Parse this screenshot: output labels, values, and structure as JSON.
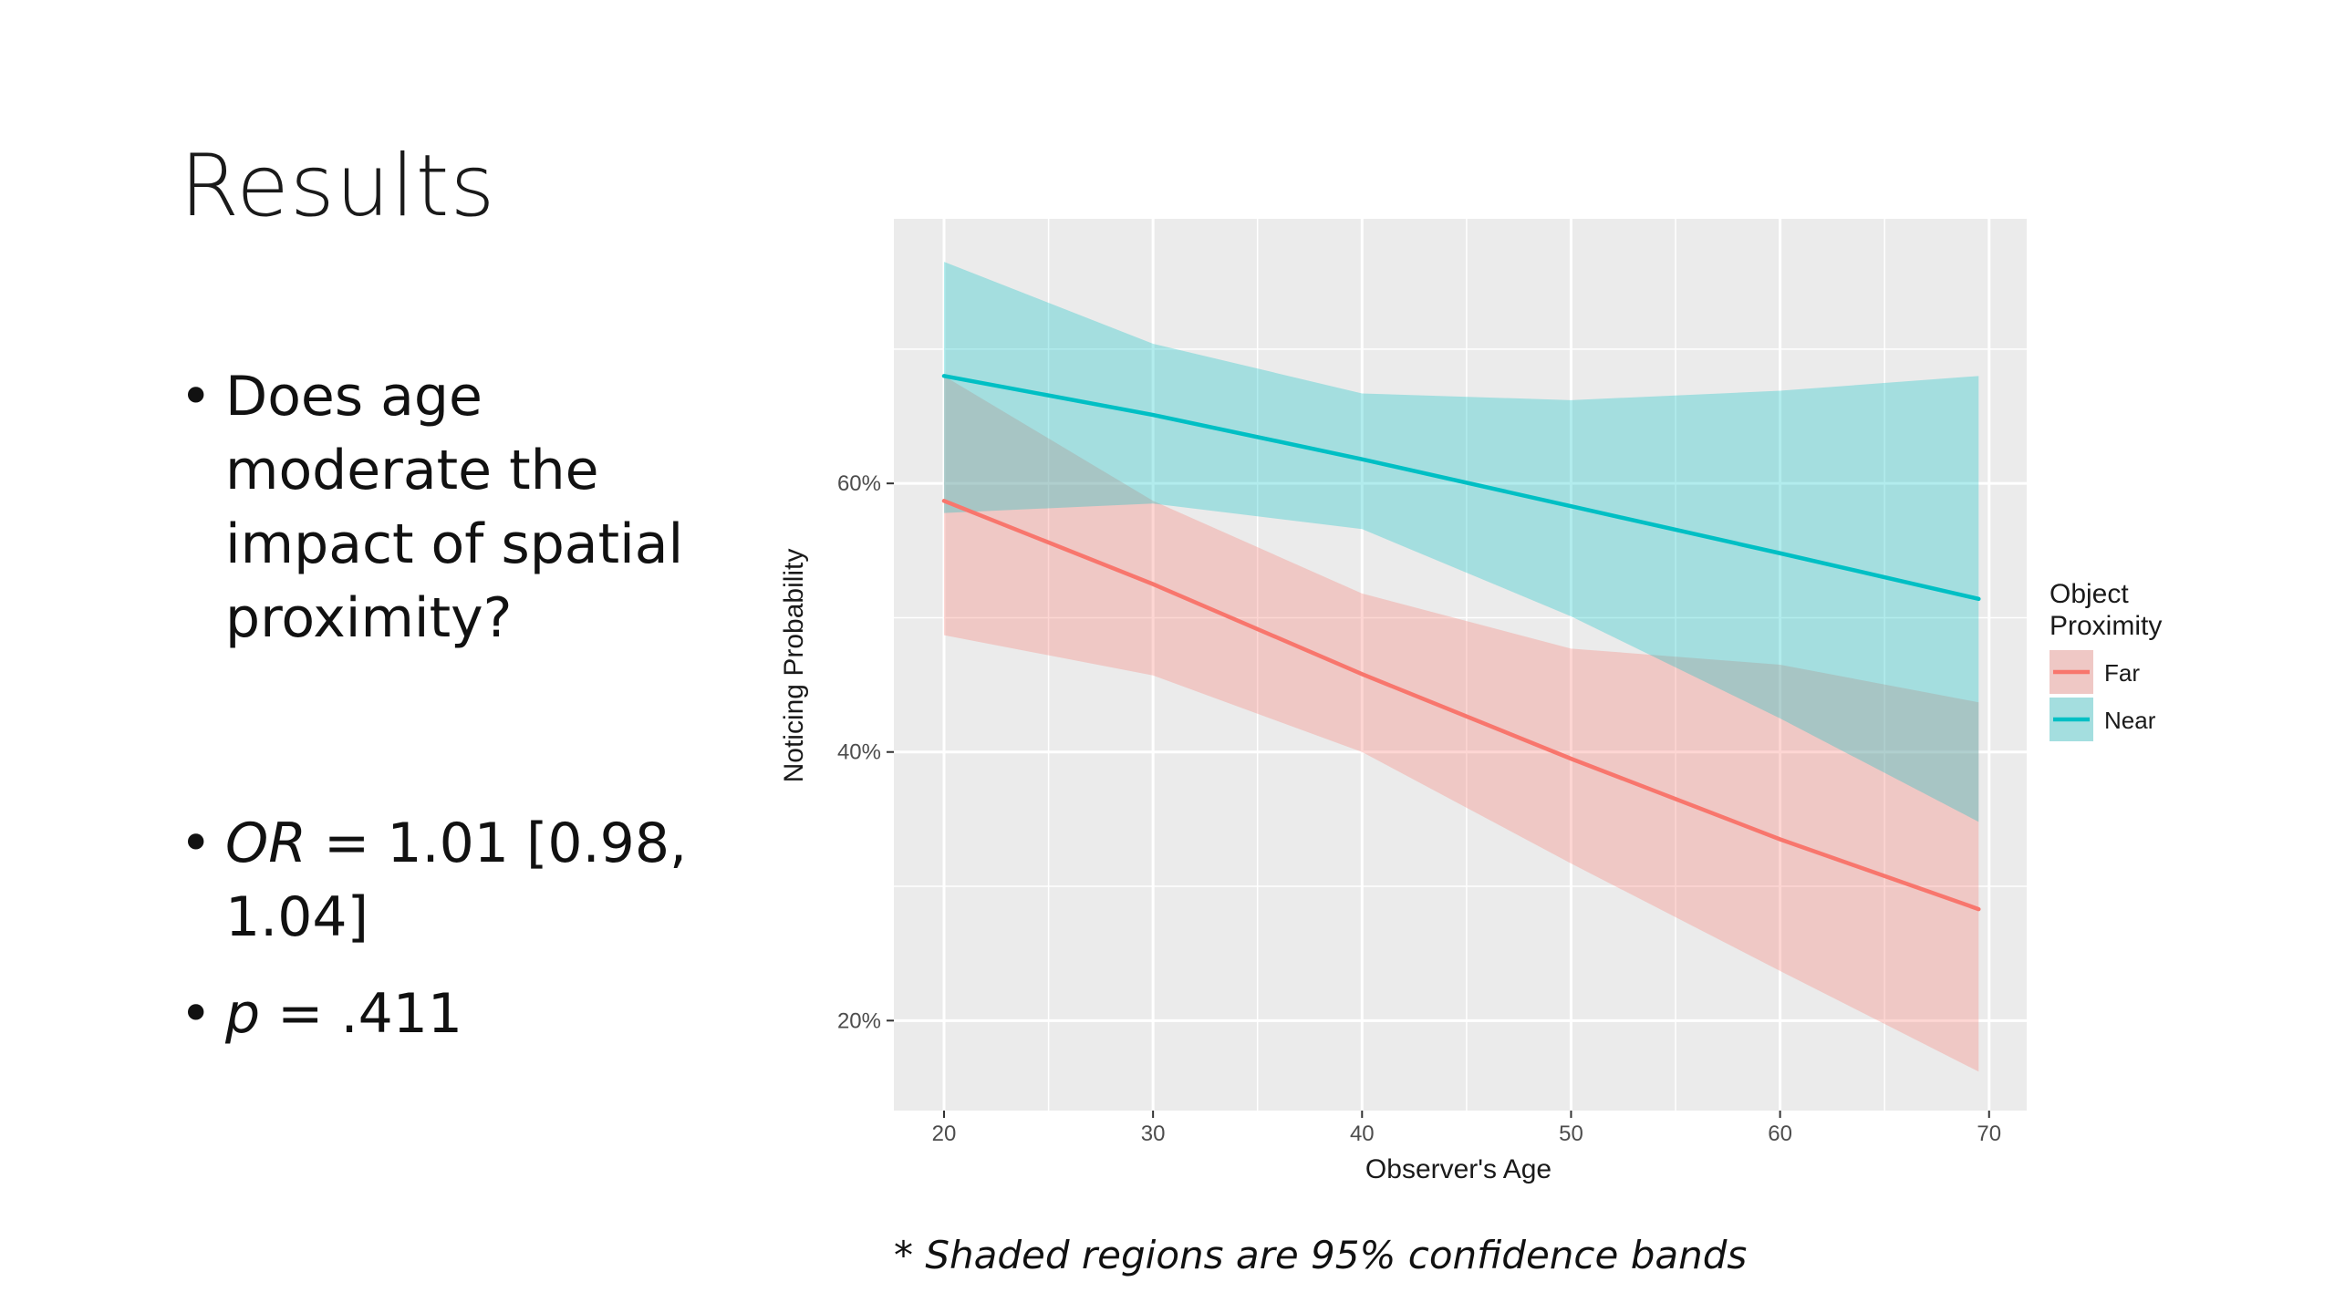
{
  "slide": {
    "title": "Results",
    "bullet_question": "Does age moderate the impact of spatial proximity?",
    "or_label": "OR",
    "or_value": " = 1.01 [0.98, 1.04]",
    "p_label": "p",
    "p_value": " = .411",
    "footnote": "* Shaded regions are 95% confidence bands"
  },
  "colors": {
    "panel_bg": "#ebebeb",
    "grid": "#ffffff",
    "far": "#f8766d",
    "near": "#00bfc4",
    "far_band": "#f8766d",
    "near_band": "#00bfc4"
  },
  "chart_data": {
    "type": "line",
    "title": "",
    "xlabel": "Observer's Age",
    "ylabel": "Noticing Probability",
    "xlim": [
      17.6,
      71.8
    ],
    "ylim": [
      0.133,
      0.797
    ],
    "x_ticks": [
      20,
      30,
      40,
      50,
      60,
      70
    ],
    "y_ticks": [
      0.2,
      0.4,
      0.6
    ],
    "y_tick_labels": [
      "20%",
      "40%",
      "60%"
    ],
    "grid": true,
    "legend": {
      "title_line1": "Object",
      "title_line2": "Proximity",
      "placement": "right"
    },
    "series": [
      {
        "name": "Far",
        "x": [
          20,
          30,
          40,
          50,
          60,
          69.5
        ],
        "y": [
          0.587,
          0.525,
          0.458,
          0.395,
          0.335,
          0.283
        ],
        "band_lower": [
          0.487,
          0.457,
          0.4,
          0.317,
          0.237,
          0.162
        ],
        "band_upper": [
          0.68,
          0.587,
          0.518,
          0.477,
          0.465,
          0.437
        ]
      },
      {
        "name": "Near",
        "x": [
          20,
          30,
          40,
          50,
          60,
          69.5
        ],
        "y": [
          0.68,
          0.651,
          0.618,
          0.583,
          0.548,
          0.514
        ],
        "band_lower": [
          0.578,
          0.585,
          0.566,
          0.501,
          0.425,
          0.348
        ],
        "band_upper": [
          0.765,
          0.704,
          0.667,
          0.662,
          0.669,
          0.68
        ]
      }
    ]
  }
}
